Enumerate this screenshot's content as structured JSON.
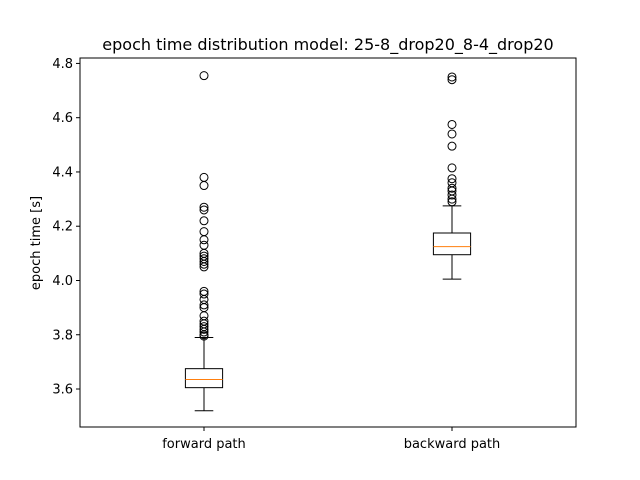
{
  "chart_data": {
    "type": "boxplot",
    "title": "epoch time distribution   model: 25-8_drop20_8-4_drop20",
    "xlabel": "",
    "ylabel": "epoch time [s]",
    "ylim": [
      3.46,
      4.82
    ],
    "yticks": [
      "3.6",
      "3.8",
      "4.0",
      "4.2",
      "4.4",
      "4.6",
      "4.8"
    ],
    "ytick_values": [
      3.6,
      3.8,
      4.0,
      4.2,
      4.4,
      4.6,
      4.8
    ],
    "categories": [
      "forward path",
      "backward path"
    ],
    "grid": false,
    "colors": {
      "median": "#ff7f0e",
      "box": "#000000"
    },
    "series": [
      {
        "whisker_low": 3.52,
        "q1": 3.605,
        "median": 3.635,
        "q3": 3.675,
        "whisker_high": 3.79,
        "outliers": [
          4.755,
          4.38,
          4.35,
          4.27,
          4.26,
          4.22,
          4.18,
          4.15,
          4.13,
          4.1,
          4.09,
          4.08,
          4.07,
          4.06,
          4.05,
          3.96,
          3.95,
          3.93,
          3.91,
          3.9,
          3.87,
          3.85,
          3.84,
          3.83,
          3.82,
          3.81,
          3.8,
          3.795
        ]
      },
      {
        "whisker_low": 4.005,
        "q1": 4.095,
        "median": 4.125,
        "q3": 4.175,
        "whisker_high": 4.275,
        "outliers": [
          4.75,
          4.74,
          4.575,
          4.54,
          4.495,
          4.415,
          4.375,
          4.36,
          4.34,
          4.33,
          4.315,
          4.3,
          4.29
        ]
      }
    ]
  }
}
